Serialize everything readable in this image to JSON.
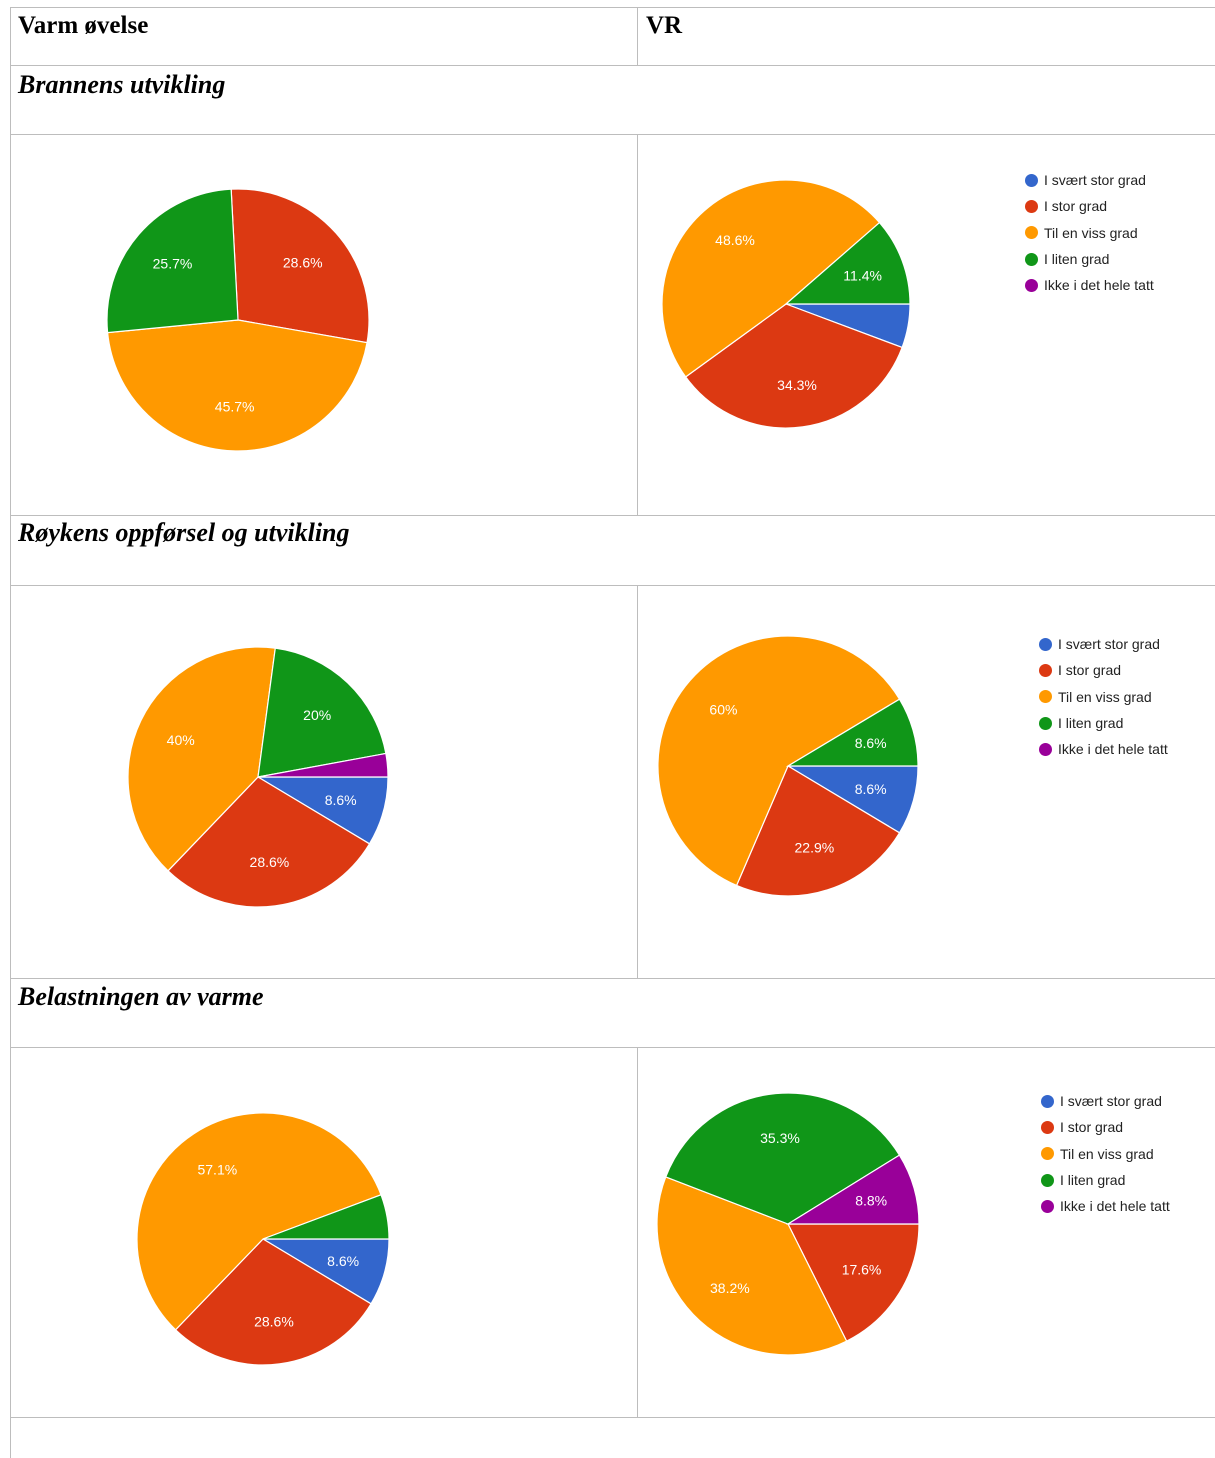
{
  "table": {
    "col_left_header": "Varm øvelse",
    "col_right_header": "VR",
    "sections": [
      {
        "title": "Brannens utvikling"
      },
      {
        "title": "Røykens oppførsel og utvikling"
      },
      {
        "title": "Belastningen av varme"
      }
    ]
  },
  "legend": {
    "items": [
      {
        "label": "I svært stor grad",
        "color": "#3366cc"
      },
      {
        "label": "I stor grad",
        "color": "#dc3912"
      },
      {
        "label": "Til en viss grad",
        "color": "#ff9900"
      },
      {
        "label": "I liten grad",
        "color": "#109618"
      },
      {
        "label": "Ikke i det hele tatt",
        "color": "#990099"
      }
    ]
  },
  "chart_data": [
    {
      "type": "pie",
      "section": "Brannens utvikling",
      "group": "Varm øvelse",
      "categories": [
        "I svært stor grad",
        "I stor grad",
        "Til en viss grad",
        "I liten grad",
        "Ikke i det hele tatt"
      ],
      "values": [
        0,
        28.6,
        45.7,
        25.7,
        0
      ],
      "labels": [
        "",
        "28.6%",
        "45.7%",
        "25.7%",
        ""
      ],
      "legend": false
    },
    {
      "type": "pie",
      "section": "Brannens utvikling",
      "group": "VR",
      "categories": [
        "I svært stor grad",
        "I stor grad",
        "Til en viss grad",
        "I liten grad",
        "Ikke i det hele tatt"
      ],
      "values": [
        5.7,
        34.3,
        48.6,
        11.4,
        0
      ],
      "labels": [
        "",
        "34.3%",
        "48.6%",
        "11.4%",
        ""
      ],
      "legend": true
    },
    {
      "type": "pie",
      "section": "Røykens oppførsel og utvikling",
      "group": "Varm øvelse",
      "categories": [
        "I svært stor grad",
        "I stor grad",
        "Til en viss grad",
        "I liten grad",
        "Ikke i det hele tatt"
      ],
      "values": [
        8.6,
        28.6,
        40,
        20,
        2.9
      ],
      "labels": [
        "8.6%",
        "28.6%",
        "40%",
        "20%",
        ""
      ],
      "legend": false
    },
    {
      "type": "pie",
      "section": "Røykens oppførsel og utvikling",
      "group": "VR",
      "categories": [
        "I svært stor grad",
        "I stor grad",
        "Til en viss grad",
        "I liten grad",
        "Ikke i det hele tatt"
      ],
      "values": [
        8.6,
        22.9,
        60,
        8.6,
        0
      ],
      "labels": [
        "8.6%",
        "22.9%",
        "60%",
        "8.6%",
        ""
      ],
      "legend": true
    },
    {
      "type": "pie",
      "section": "Belastningen av varme",
      "group": "Varm øvelse",
      "categories": [
        "I svært stor grad",
        "I stor grad",
        "Til en viss grad",
        "I liten grad",
        "Ikke i det hele tatt"
      ],
      "values": [
        8.6,
        28.6,
        57.1,
        5.7,
        0
      ],
      "labels": [
        "8.6%",
        "28.6%",
        "57.1%",
        "",
        ""
      ],
      "legend": false
    },
    {
      "type": "pie",
      "section": "Belastningen av varme",
      "group": "VR",
      "categories": [
        "I svært stor grad",
        "I stor grad",
        "Til en viss grad",
        "I liten grad",
        "Ikke i det hele tatt"
      ],
      "values": [
        0,
        17.6,
        38.2,
        35.3,
        8.8
      ],
      "labels": [
        "",
        "17.6%",
        "38.2%",
        "35.3%",
        "8.8%"
      ],
      "legend": true
    }
  ]
}
